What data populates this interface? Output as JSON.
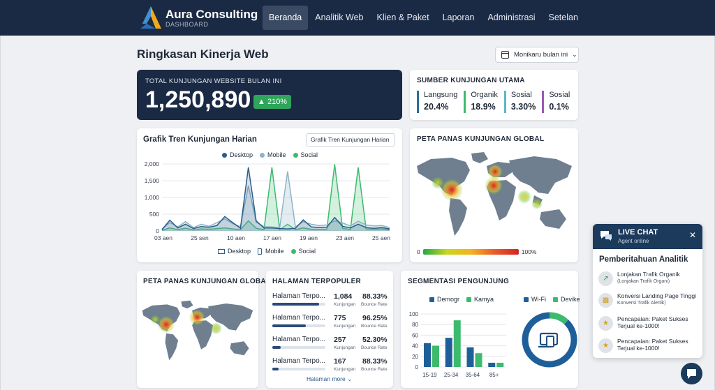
{
  "brand": {
    "name": "Aura Consulting",
    "subtitle": "DASHBOARD"
  },
  "nav": [
    {
      "label": "Beranda",
      "active": true
    },
    {
      "label": "Analitik Web",
      "active": false
    },
    {
      "label": "Klien & Paket",
      "active": false
    },
    {
      "label": "Laporan",
      "active": false
    },
    {
      "label": "Administrasi",
      "active": false
    },
    {
      "label": "Setelan",
      "active": false
    }
  ],
  "page": {
    "title": "Ringkasan Kinerja Web",
    "period_button": "Monikaru bulan ini"
  },
  "total": {
    "label": "TOTAL KUNJUNGAN WEBSITE BULAN INI",
    "value": "1,250,890",
    "badge": "210%"
  },
  "sources": {
    "title": "SUMBER KUNJUNGAN UTAMA",
    "items": [
      {
        "name": "Langsung",
        "value": "20.4%",
        "color": "#2a6f97"
      },
      {
        "name": "Organik",
        "value": "18.9%",
        "color": "#3dbb6c"
      },
      {
        "name": "Sosial",
        "value": "3.30%",
        "color": "#5db7c2"
      },
      {
        "name": "Sosial",
        "value": "0.1%",
        "color": "#9b59b6"
      }
    ]
  },
  "trend": {
    "title": "Grafik Tren Kunjungan Harian",
    "dropdown": "Grafik Tren Kunjungan Harian",
    "legend_top": [
      "Desktop",
      "Mobile",
      "Social"
    ],
    "legend_bottom": [
      "Desktop",
      "Mobile",
      "Social"
    ]
  },
  "colors": {
    "desktop": "#2a5d8a",
    "mobile": "#8fb3c7",
    "social": "#3dbb6c",
    "navy": "#1b2a44"
  },
  "chart_data": [
    {
      "type": "line",
      "title": "Grafik Tren Kunjungan Harian",
      "x_ticks": [
        "03 aen",
        "25 sen",
        "10 aen",
        "17 aen",
        "19 aen",
        "23 aen",
        "25 aen"
      ],
      "y_ticks": [
        "0",
        "500",
        "1,000",
        "1,500",
        "2,000"
      ],
      "ylim": [
        0,
        2000
      ],
      "series": [
        {
          "name": "Desktop",
          "values": [
            40,
            320,
            90,
            200,
            70,
            130,
            110,
            160,
            430,
            250,
            80,
            1900,
            300,
            90,
            90,
            70,
            60,
            80,
            330,
            120,
            100,
            110,
            400,
            140,
            90,
            200,
            100,
            80,
            100,
            60
          ]
        },
        {
          "name": "Mobile",
          "values": [
            60,
            250,
            120,
            280,
            100,
            200,
            140,
            250,
            360,
            220,
            130,
            1350,
            260,
            130,
            120,
            100,
            1780,
            120,
            280,
            200,
            160,
            180,
            300,
            240,
            150,
            290,
            180,
            150,
            160,
            100
          ]
        },
        {
          "name": "Social",
          "values": [
            20,
            90,
            40,
            80,
            30,
            60,
            50,
            70,
            90,
            60,
            40,
            300,
            80,
            40,
            1900,
            40,
            200,
            40,
            90,
            50,
            40,
            50,
            1990,
            80,
            40,
            1900,
            60,
            50,
            60,
            30
          ]
        }
      ]
    },
    {
      "type": "bar",
      "title": "SEGMENTASI PENGUNJUNG",
      "categories": [
        "15-19",
        "25-34",
        "35-64",
        "85+"
      ],
      "y_ticks": [
        "0",
        "20",
        "40",
        "60",
        "80",
        "100"
      ],
      "ylim": [
        0,
        100
      ],
      "series": [
        {
          "name": "Demogr",
          "values": [
            45,
            55,
            37,
            8
          ]
        },
        {
          "name": "Kamya",
          "values": [
            40,
            88,
            26,
            8
          ]
        }
      ]
    },
    {
      "type": "pie",
      "legend": [
        "Wi-Fi",
        "Devike"
      ],
      "values": [
        12,
        88
      ]
    }
  ],
  "heatmap": {
    "title": "PETA PANAS KUNJUNGAN GLOBAL",
    "min_label": "0",
    "max_label": "100%"
  },
  "top_pages": {
    "title": "HALAMAN TERPOPULER",
    "visits_caption": "Kunjungan",
    "bounce_caption": "Bounce Rate",
    "rows": [
      {
        "name": "Halaman Terpo...",
        "visits": "1,084",
        "bounce": "88.33%",
        "fill": 0.88
      },
      {
        "name": "Halaman Terpo...",
        "visits": "775",
        "bounce": "96.25%",
        "fill": 0.63
      },
      {
        "name": "Halaman Terpo...",
        "visits": "257",
        "bounce": "52.30%",
        "fill": 0.16
      },
      {
        "name": "Halaman Terpo...",
        "visits": "167",
        "bounce": "88.33%",
        "fill": 0.12
      }
    ],
    "more": "Halaman more"
  },
  "segment": {
    "title": "SEGMENTASI PENGUNJUNG",
    "legend_left": [
      "Demogr",
      "Kamya"
    ],
    "legend_right": [
      "Wi-Fi",
      "Devike"
    ]
  },
  "chat": {
    "title": "LIVE CHAT",
    "status": "Agent online",
    "heading": "Pemberitahuan Analitik",
    "items": [
      {
        "title": "Lonjakan Trafik Organik",
        "sub": "(Lonjakan Trafik Organi)",
        "icon": "trend-up-icon"
      },
      {
        "title": "Konversi Landing Page Tinggi",
        "sub": "Konversi Trafik Alertik)",
        "icon": "bar-chart-icon"
      },
      {
        "title": "Pencapaian: Paket Sukses Terjual ke-1000!",
        "sub": "",
        "icon": "trophy-icon"
      },
      {
        "title": "Pencapaian: Paket Sukses Terjual ke-1000!",
        "sub": "",
        "icon": "trophy-icon"
      }
    ]
  }
}
